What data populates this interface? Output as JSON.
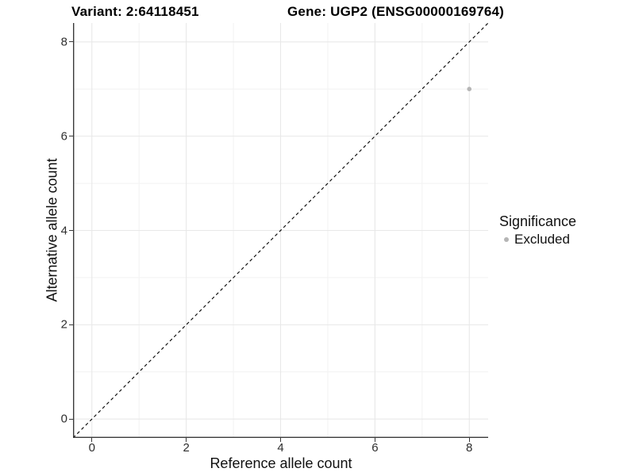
{
  "titles": {
    "variant": "Variant: 2:64118451",
    "gene": "Gene: UGP2 (ENSG00000169764)"
  },
  "chart_data": {
    "type": "scatter",
    "title": "Variant: 2:64118451 | Gene: UGP2 (ENSG00000169764)",
    "xlabel": "Reference allele count",
    "ylabel": "Alternative allele count",
    "xlim": [
      -0.4,
      8.4
    ],
    "ylim": [
      -0.4,
      8.4
    ],
    "x_ticks": [
      0,
      2,
      4,
      6,
      8
    ],
    "y_ticks": [
      0,
      2,
      4,
      6,
      8
    ],
    "x_minor_ticks": [
      1,
      3,
      5,
      7
    ],
    "y_minor_ticks": [
      1,
      3,
      5,
      7
    ],
    "grid": true,
    "series": [
      {
        "name": "Excluded",
        "color": "#b5b5b5",
        "points": [
          {
            "x": 8,
            "y": 7
          }
        ]
      }
    ],
    "reference_line": {
      "kind": "diagonal-identity",
      "style": "dashed",
      "color": "#000000"
    },
    "legend": {
      "title": "Significance",
      "position": "right",
      "items": [
        {
          "label": "Excluded",
          "color": "#b5b5b5"
        }
      ]
    }
  },
  "colors": {
    "background": "#ffffff",
    "axis_line": "#3a3a3a",
    "grid_major": "#e8e8e8",
    "grid_minor": "#f2f2f2",
    "point": "#b5b5b5",
    "text": "#111111"
  }
}
